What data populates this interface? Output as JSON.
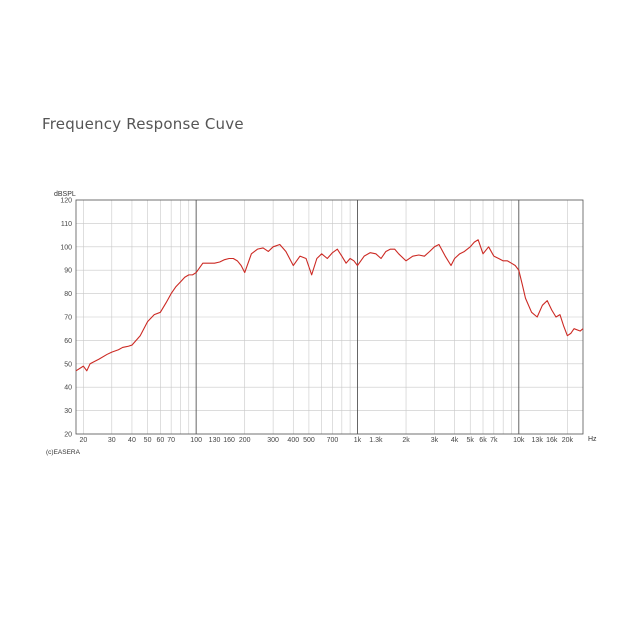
{
  "page": {
    "heading": "Frequency Response Cuve"
  },
  "chart_data": {
    "type": "line",
    "title": "",
    "ylabel": "dBSPL",
    "xunit": "Hz",
    "credit": "(c)EASERA",
    "xscale": "log",
    "xlim": [
      18,
      25000
    ],
    "ylim": [
      20,
      120
    ],
    "y_ticks": [
      20,
      30,
      40,
      50,
      60,
      70,
      80,
      90,
      100,
      110,
      120
    ],
    "x_ticks": [
      {
        "v": 20,
        "label": "20"
      },
      {
        "v": 30,
        "label": "30"
      },
      {
        "v": 40,
        "label": "40"
      },
      {
        "v": 50,
        "label": "50"
      },
      {
        "v": 60,
        "label": "60"
      },
      {
        "v": 70,
        "label": "70"
      },
      {
        "v": 100,
        "label": "100"
      },
      {
        "v": 130,
        "label": "130"
      },
      {
        "v": 160,
        "label": "160"
      },
      {
        "v": 200,
        "label": "200"
      },
      {
        "v": 300,
        "label": "300"
      },
      {
        "v": 400,
        "label": "400"
      },
      {
        "v": 500,
        "label": "500"
      },
      {
        "v": 700,
        "label": "700"
      },
      {
        "v": 1000,
        "label": "1k"
      },
      {
        "v": 1300,
        "label": "1.3k"
      },
      {
        "v": 2000,
        "label": "2k"
      },
      {
        "v": 3000,
        "label": "3k"
      },
      {
        "v": 4000,
        "label": "4k"
      },
      {
        "v": 5000,
        "label": "5k"
      },
      {
        "v": 6000,
        "label": "6k"
      },
      {
        "v": 7000,
        "label": "7k"
      },
      {
        "v": 10000,
        "label": "10k"
      },
      {
        "v": 13000,
        "label": "13k"
      },
      {
        "v": 16000,
        "label": "16k"
      },
      {
        "v": 20000,
        "label": "20k"
      }
    ],
    "grid": true,
    "line_color": "#cc2a24",
    "series": [
      {
        "x": [
          18,
          20,
          21,
          22,
          25,
          28,
          30,
          33,
          35,
          38,
          40,
          45,
          50,
          55,
          60,
          65,
          70,
          75,
          80,
          85,
          90,
          95,
          100,
          110,
          120,
          130,
          140,
          150,
          160,
          170,
          180,
          190,
          200,
          220,
          240,
          260,
          280,
          300,
          330,
          360,
          400,
          440,
          480,
          520,
          560,
          600,
          650,
          700,
          750,
          800,
          850,
          900,
          950,
          1000,
          1100,
          1200,
          1300,
          1400,
          1500,
          1600,
          1700,
          1800,
          2000,
          2200,
          2400,
          2600,
          2800,
          3000,
          3200,
          3500,
          3800,
          4000,
          4300,
          4600,
          5000,
          5300,
          5600,
          6000,
          6500,
          7000,
          7500,
          8000,
          8500,
          9000,
          9500,
          10000,
          10500,
          11000,
          12000,
          13000,
          14000,
          15000,
          16000,
          17000,
          18000,
          19000,
          20000,
          21000,
          22000,
          24000,
          25000
        ],
        "y": [
          47,
          49,
          47,
          50,
          52,
          54,
          55,
          56,
          57,
          57.5,
          58,
          62,
          68,
          71,
          72,
          76,
          80,
          83,
          85,
          87,
          88,
          88,
          89,
          93,
          93,
          93,
          93.5,
          94.5,
          95,
          95,
          94,
          92,
          89,
          97,
          99,
          99.5,
          98,
          100,
          101,
          98,
          92,
          96,
          95,
          88,
          95,
          97,
          95,
          97.5,
          99,
          96,
          93,
          95,
          94,
          92,
          96,
          97.5,
          97,
          95,
          98,
          99,
          99,
          97,
          94,
          96,
          96.5,
          96,
          98,
          100,
          101,
          96,
          92,
          95,
          97,
          98,
          100,
          102,
          103,
          97,
          100,
          96,
          95,
          94,
          94,
          93,
          92,
          90,
          84,
          78,
          72,
          70,
          75,
          77,
          73,
          70,
          71,
          66,
          62,
          63,
          65,
          64,
          65
        ]
      }
    ]
  }
}
